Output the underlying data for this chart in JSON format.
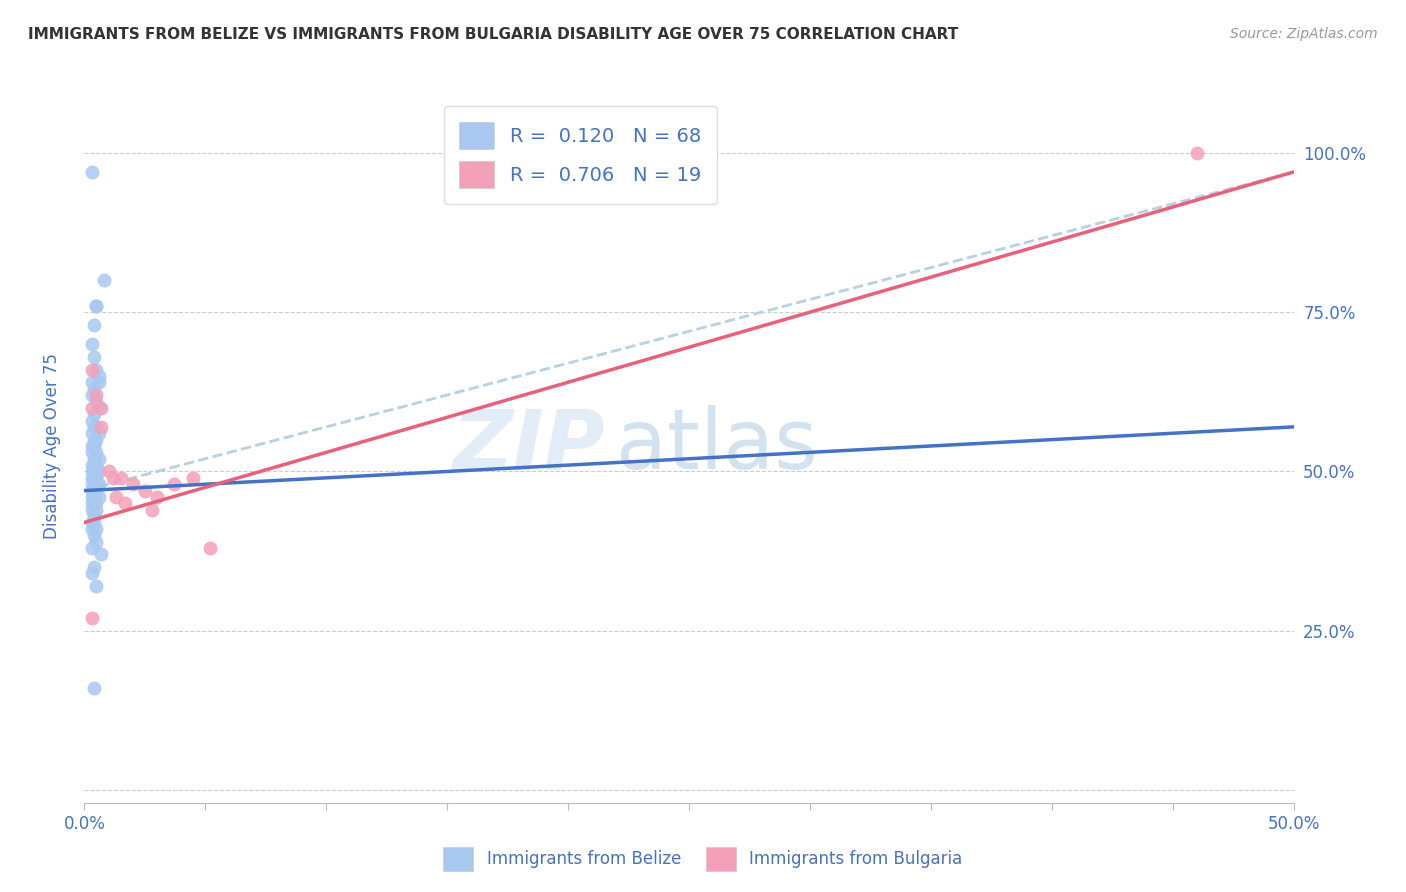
{
  "title": "IMMIGRANTS FROM BELIZE VS IMMIGRANTS FROM BULGARIA DISABILITY AGE OVER 75 CORRELATION CHART",
  "source": "Source: ZipAtlas.com",
  "xlabel_label": "Immigrants from Belize",
  "ylabel_label": "Disability Age Over 75",
  "xlim": [
    0.0,
    0.5
  ],
  "ylim": [
    -0.02,
    1.1
  ],
  "belize_R": 0.12,
  "belize_N": 68,
  "bulgaria_R": 0.706,
  "bulgaria_N": 19,
  "belize_color": "#a8c8f0",
  "bulgaria_color": "#f4a0b8",
  "belize_line_color": "#4472c4",
  "bulgaria_line_color": "#e8607a",
  "trend_line_color": "#b8d0e0",
  "legend_text_color": "#4472c4",
  "axis_color": "#4472c4",
  "watermark_zip": "ZIP",
  "watermark_atlas": "atlas",
  "grid_color": "#cccccc",
  "belize_x": [
    0.003,
    0.008,
    0.005,
    0.004,
    0.003,
    0.004,
    0.005,
    0.006,
    0.004,
    0.003,
    0.005,
    0.006,
    0.004,
    0.003,
    0.005,
    0.004,
    0.006,
    0.003,
    0.004,
    0.005,
    0.003,
    0.004,
    0.005,
    0.003,
    0.004,
    0.006,
    0.005,
    0.004,
    0.003,
    0.005,
    0.004,
    0.003,
    0.006,
    0.004,
    0.005,
    0.003,
    0.004,
    0.005,
    0.006,
    0.003,
    0.004,
    0.003,
    0.005,
    0.004,
    0.003,
    0.006,
    0.004,
    0.005,
    0.003,
    0.004,
    0.003,
    0.005,
    0.004,
    0.003,
    0.004,
    0.005,
    0.003,
    0.004,
    0.005,
    0.003,
    0.007,
    0.004,
    0.003,
    0.005,
    0.004,
    0.003,
    0.006,
    0.005
  ],
  "belize_y": [
    0.97,
    0.8,
    0.76,
    0.73,
    0.7,
    0.68,
    0.66,
    0.64,
    0.63,
    0.62,
    0.61,
    0.6,
    0.59,
    0.58,
    0.57,
    0.57,
    0.56,
    0.56,
    0.55,
    0.55,
    0.54,
    0.54,
    0.53,
    0.53,
    0.52,
    0.52,
    0.51,
    0.51,
    0.51,
    0.5,
    0.5,
    0.5,
    0.5,
    0.49,
    0.49,
    0.49,
    0.49,
    0.48,
    0.48,
    0.48,
    0.47,
    0.47,
    0.47,
    0.46,
    0.46,
    0.46,
    0.46,
    0.45,
    0.45,
    0.45,
    0.44,
    0.44,
    0.43,
    0.42,
    0.42,
    0.41,
    0.41,
    0.4,
    0.39,
    0.38,
    0.37,
    0.35,
    0.34,
    0.32,
    0.16,
    0.64,
    0.65,
    0.76
  ],
  "bulgaria_x": [
    0.003,
    0.003,
    0.005,
    0.007,
    0.003,
    0.007,
    0.01,
    0.012,
    0.015,
    0.02,
    0.013,
    0.017,
    0.025,
    0.03,
    0.028,
    0.037,
    0.045,
    0.052,
    0.46
  ],
  "bulgaria_y": [
    0.27,
    0.66,
    0.62,
    0.6,
    0.6,
    0.57,
    0.5,
    0.49,
    0.49,
    0.48,
    0.46,
    0.45,
    0.47,
    0.46,
    0.44,
    0.48,
    0.49,
    0.38,
    1.0
  ],
  "belize_trend_x": [
    0.0,
    0.5
  ],
  "belize_trend_y": [
    0.47,
    0.57
  ],
  "bulgaria_trend_x": [
    0.0,
    0.5
  ],
  "bulgaria_trend_y": [
    0.42,
    0.97
  ],
  "dashed_trend_x": [
    0.0,
    0.5
  ],
  "dashed_trend_y": [
    0.47,
    0.97
  ]
}
